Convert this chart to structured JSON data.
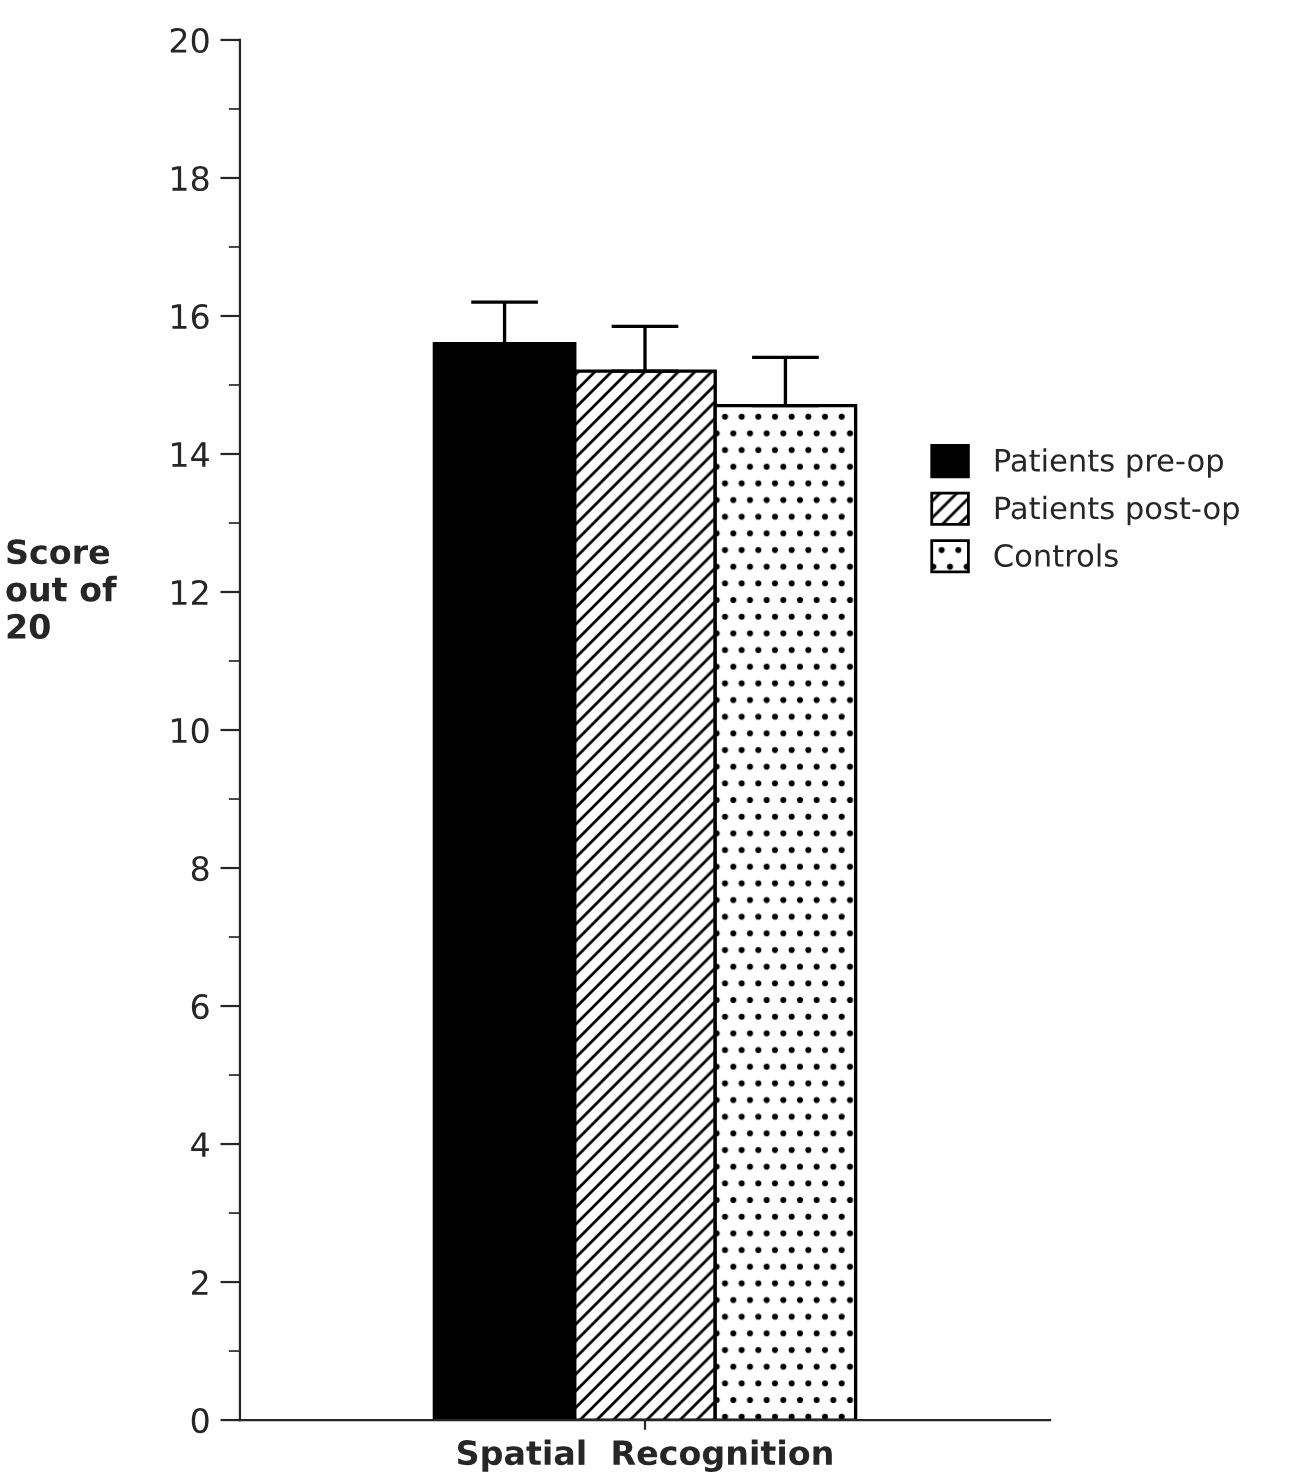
{
  "chart_data": {
    "type": "bar",
    "categories": [
      "Spatial  Recognition"
    ],
    "ylabel": "Score\nout of\n20",
    "ylim": [
      0,
      20
    ],
    "yticks": [
      0,
      2,
      4,
      6,
      8,
      10,
      12,
      14,
      16,
      18,
      20
    ],
    "legend": "right",
    "grid": false,
    "series": [
      {
        "name": "Patients pre-op",
        "color": "#000000",
        "values": [
          15.6
        ],
        "errors": [
          [
            15.6,
            16.2
          ]
        ]
      },
      {
        "name": "Patients post-op",
        "color": "#000000",
        "values": [
          15.2
        ],
        "errors": [
          [
            15.2,
            15.85
          ]
        ]
      },
      {
        "name": "Controls",
        "color": "#000000",
        "values": [
          14.7
        ],
        "errors": [
          [
            14.7,
            15.4
          ]
        ]
      }
    ]
  }
}
